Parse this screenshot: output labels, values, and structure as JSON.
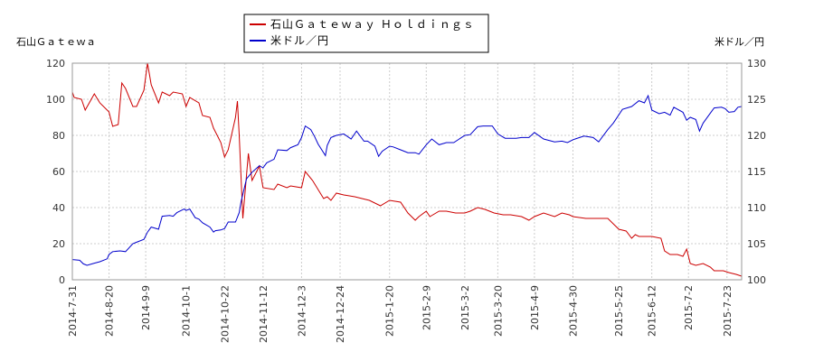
{
  "chart_data": {
    "type": "line",
    "left_axis_label": "石山Ｇａｔｅｗａ",
    "right_axis_label": "米ドル／円",
    "y_left": {
      "min": 0,
      "max": 120,
      "ticks": [
        "0",
        "20",
        "40",
        "60",
        "80",
        "100",
        "120"
      ]
    },
    "y_right": {
      "min": 100,
      "max": 130,
      "ticks": [
        "100",
        "105",
        "110",
        "115",
        "120",
        "125",
        "130"
      ]
    },
    "x_start": "2014-07-31",
    "x_end": "2015-07-31",
    "x_ticks": [
      "2014-7-31",
      "2014-8-20",
      "2014-9-9",
      "2014-10-1",
      "2014-10-22",
      "2014-11-12",
      "2014-12-3",
      "2014-12-24",
      "2015-1-20",
      "2015-2-9",
      "2015-3-2",
      "2015-3-20",
      "2015-4-9",
      "2015-4-30",
      "2015-5-25",
      "2015-6-12",
      "2015-7-2",
      "2015-7-23"
    ],
    "grid": true,
    "legend_position": "top",
    "series": [
      {
        "name": "石山Ｇａｔｅｗａｙ Ｈｏｌｄｉｎｇｓ",
        "axis": "left",
        "color": "#cc0000",
        "points": [
          [
            "2014-07-31",
            104
          ],
          [
            "2014-08-01",
            101
          ],
          [
            "2014-08-05",
            100
          ],
          [
            "2014-08-07",
            94
          ],
          [
            "2014-08-12",
            103
          ],
          [
            "2014-08-15",
            98
          ],
          [
            "2014-08-20",
            93
          ],
          [
            "2014-08-22",
            85
          ],
          [
            "2014-08-25",
            86
          ],
          [
            "2014-08-27",
            109
          ],
          [
            "2014-08-29",
            106
          ],
          [
            "2014-09-02",
            96
          ],
          [
            "2014-09-04",
            96
          ],
          [
            "2014-09-08",
            105
          ],
          [
            "2014-09-10",
            120
          ],
          [
            "2014-09-12",
            108
          ],
          [
            "2014-09-16",
            98
          ],
          [
            "2014-09-18",
            104
          ],
          [
            "2014-09-22",
            102
          ],
          [
            "2014-09-24",
            104
          ],
          [
            "2014-09-29",
            103
          ],
          [
            "2014-10-01",
            96
          ],
          [
            "2014-10-03",
            101
          ],
          [
            "2014-10-08",
            98
          ],
          [
            "2014-10-10",
            91
          ],
          [
            "2014-10-14",
            90
          ],
          [
            "2014-10-16",
            84
          ],
          [
            "2014-10-20",
            76
          ],
          [
            "2014-10-22",
            68
          ],
          [
            "2014-10-24",
            72
          ],
          [
            "2014-10-28",
            90
          ],
          [
            "2014-10-29",
            99
          ],
          [
            "2014-10-30",
            80
          ],
          [
            "2014-11-01",
            34
          ],
          [
            "2014-11-04",
            70
          ],
          [
            "2014-11-06",
            55
          ],
          [
            "2014-11-10",
            63
          ],
          [
            "2014-11-12",
            51
          ],
          [
            "2014-11-18",
            50
          ],
          [
            "2014-11-20",
            53
          ],
          [
            "2014-11-25",
            51
          ],
          [
            "2014-11-27",
            52
          ],
          [
            "2014-12-03",
            51
          ],
          [
            "2014-12-05",
            60
          ],
          [
            "2014-12-09",
            55
          ],
          [
            "2014-12-15",
            45
          ],
          [
            "2014-12-17",
            46
          ],
          [
            "2014-12-19",
            44
          ],
          [
            "2014-12-22",
            48
          ],
          [
            "2014-12-26",
            47
          ],
          [
            "2015-01-01",
            46
          ],
          [
            "2015-01-09",
            44
          ],
          [
            "2015-01-15",
            41
          ],
          [
            "2015-01-20",
            44
          ],
          [
            "2015-01-26",
            43
          ],
          [
            "2015-01-30",
            37
          ],
          [
            "2015-02-03",
            33
          ],
          [
            "2015-02-05",
            35
          ],
          [
            "2015-02-09",
            38
          ],
          [
            "2015-02-11",
            35
          ],
          [
            "2015-02-16",
            38
          ],
          [
            "2015-02-20",
            38
          ],
          [
            "2015-02-25",
            37
          ],
          [
            "2015-03-02",
            37
          ],
          [
            "2015-03-05",
            38
          ],
          [
            "2015-03-09",
            40
          ],
          [
            "2015-03-13",
            39
          ],
          [
            "2015-03-18",
            37
          ],
          [
            "2015-03-23",
            36
          ],
          [
            "2015-03-27",
            36
          ],
          [
            "2015-04-02",
            35
          ],
          [
            "2015-04-06",
            33
          ],
          [
            "2015-04-09",
            35
          ],
          [
            "2015-04-14",
            37
          ],
          [
            "2015-04-20",
            35
          ],
          [
            "2015-04-24",
            37
          ],
          [
            "2015-04-28",
            36
          ],
          [
            "2015-04-30",
            35
          ],
          [
            "2015-05-07",
            34
          ],
          [
            "2015-05-14",
            34
          ],
          [
            "2015-05-19",
            34
          ],
          [
            "2015-05-25",
            28
          ],
          [
            "2015-05-29",
            27
          ],
          [
            "2015-06-01",
            23
          ],
          [
            "2015-06-03",
            25
          ],
          [
            "2015-06-05",
            24
          ],
          [
            "2015-06-12",
            24
          ],
          [
            "2015-06-17",
            23
          ],
          [
            "2015-06-19",
            16
          ],
          [
            "2015-06-22",
            14
          ],
          [
            "2015-06-26",
            14
          ],
          [
            "2015-06-29",
            13
          ],
          [
            "2015-07-01",
            17
          ],
          [
            "2015-07-03",
            9
          ],
          [
            "2015-07-06",
            8
          ],
          [
            "2015-07-10",
            9
          ],
          [
            "2015-07-14",
            7
          ],
          [
            "2015-07-16",
            5
          ],
          [
            "2015-07-21",
            5
          ],
          [
            "2015-07-24",
            4
          ],
          [
            "2015-07-28",
            3
          ],
          [
            "2015-07-31",
            2
          ]
        ]
      },
      {
        "name": "米ドル／円",
        "axis": "right",
        "color": "#0000cc",
        "points": [
          [
            "2014-07-31",
            102.8
          ],
          [
            "2014-08-04",
            102.7
          ],
          [
            "2014-08-06",
            102.2
          ],
          [
            "2014-08-08",
            102.0
          ],
          [
            "2014-08-12",
            102.3
          ],
          [
            "2014-08-15",
            102.5
          ],
          [
            "2014-08-19",
            102.9
          ],
          [
            "2014-08-20",
            103.5
          ],
          [
            "2014-08-22",
            103.9
          ],
          [
            "2014-08-26",
            104.0
          ],
          [
            "2014-08-29",
            103.9
          ],
          [
            "2014-09-02",
            105.0
          ],
          [
            "2014-09-04",
            105.2
          ],
          [
            "2014-09-08",
            105.6
          ],
          [
            "2014-09-10",
            106.6
          ],
          [
            "2014-09-12",
            107.3
          ],
          [
            "2014-09-16",
            107.0
          ],
          [
            "2014-09-18",
            108.8
          ],
          [
            "2014-09-22",
            108.9
          ],
          [
            "2014-09-24",
            108.8
          ],
          [
            "2014-09-26",
            109.3
          ],
          [
            "2014-09-30",
            109.8
          ],
          [
            "2014-10-01",
            109.6
          ],
          [
            "2014-10-03",
            109.8
          ],
          [
            "2014-10-06",
            108.6
          ],
          [
            "2014-10-08",
            108.4
          ],
          [
            "2014-10-10",
            107.9
          ],
          [
            "2014-10-14",
            107.3
          ],
          [
            "2014-10-16",
            106.6
          ],
          [
            "2014-10-17",
            106.8
          ],
          [
            "2014-10-20",
            106.9
          ],
          [
            "2014-10-22",
            107.1
          ],
          [
            "2014-10-24",
            108.0
          ],
          [
            "2014-10-28",
            108.0
          ],
          [
            "2014-10-30",
            109.3
          ],
          [
            "2014-10-31",
            110.8
          ],
          [
            "2014-11-03",
            114.0
          ],
          [
            "2014-11-06",
            114.9
          ],
          [
            "2014-11-10",
            115.8
          ],
          [
            "2014-11-12",
            115.5
          ],
          [
            "2014-11-14",
            116.2
          ],
          [
            "2014-11-18",
            116.7
          ],
          [
            "2014-11-20",
            118.0
          ],
          [
            "2014-11-25",
            117.9
          ],
          [
            "2014-11-27",
            118.3
          ],
          [
            "2014-12-01",
            118.7
          ],
          [
            "2014-12-03",
            119.7
          ],
          [
            "2014-12-05",
            121.3
          ],
          [
            "2014-12-08",
            120.8
          ],
          [
            "2014-12-10",
            119.9
          ],
          [
            "2014-12-12",
            118.8
          ],
          [
            "2014-12-16",
            117.2
          ],
          [
            "2014-12-17",
            118.6
          ],
          [
            "2014-12-19",
            119.7
          ],
          [
            "2014-12-22",
            120.0
          ],
          [
            "2014-12-26",
            120.2
          ],
          [
            "2014-12-30",
            119.5
          ],
          [
            "2015-01-02",
            120.6
          ],
          [
            "2015-01-06",
            119.2
          ],
          [
            "2015-01-08",
            119.2
          ],
          [
            "2015-01-12",
            118.5
          ],
          [
            "2015-01-14",
            117.1
          ],
          [
            "2015-01-16",
            117.8
          ],
          [
            "2015-01-20",
            118.5
          ],
          [
            "2015-01-22",
            118.4
          ],
          [
            "2015-01-26",
            118.0
          ],
          [
            "2015-01-28",
            117.8
          ],
          [
            "2015-01-30",
            117.6
          ],
          [
            "2015-02-03",
            117.6
          ],
          [
            "2015-02-05",
            117.4
          ],
          [
            "2015-02-09",
            118.7
          ],
          [
            "2015-02-12",
            119.5
          ],
          [
            "2015-02-16",
            118.7
          ],
          [
            "2015-02-20",
            119.0
          ],
          [
            "2015-02-24",
            119.0
          ],
          [
            "2015-03-02",
            120.0
          ],
          [
            "2015-03-05",
            120.1
          ],
          [
            "2015-03-09",
            121.2
          ],
          [
            "2015-03-12",
            121.3
          ],
          [
            "2015-03-17",
            121.3
          ],
          [
            "2015-03-20",
            120.2
          ],
          [
            "2015-03-24",
            119.6
          ],
          [
            "2015-03-30",
            119.6
          ],
          [
            "2015-04-02",
            119.7
          ],
          [
            "2015-04-06",
            119.7
          ],
          [
            "2015-04-09",
            120.4
          ],
          [
            "2015-04-14",
            119.5
          ],
          [
            "2015-04-20",
            119.1
          ],
          [
            "2015-04-24",
            119.2
          ],
          [
            "2015-04-27",
            119.0
          ],
          [
            "2015-04-30",
            119.4
          ],
          [
            "2015-05-06",
            119.9
          ],
          [
            "2015-05-11",
            119.7
          ],
          [
            "2015-05-14",
            119.1
          ],
          [
            "2015-05-19",
            120.8
          ],
          [
            "2015-05-22",
            121.7
          ],
          [
            "2015-05-27",
            123.6
          ],
          [
            "2015-06-01",
            124.0
          ],
          [
            "2015-06-05",
            124.8
          ],
          [
            "2015-06-08",
            124.5
          ],
          [
            "2015-06-10",
            125.5
          ],
          [
            "2015-06-12",
            123.5
          ],
          [
            "2015-06-16",
            123.0
          ],
          [
            "2015-06-19",
            123.2
          ],
          [
            "2015-06-22",
            122.8
          ],
          [
            "2015-06-24",
            123.9
          ],
          [
            "2015-06-29",
            123.2
          ],
          [
            "2015-07-01",
            122.1
          ],
          [
            "2015-07-03",
            122.5
          ],
          [
            "2015-07-06",
            122.2
          ],
          [
            "2015-07-08",
            120.6
          ],
          [
            "2015-07-10",
            121.7
          ],
          [
            "2015-07-14",
            123.1
          ],
          [
            "2015-07-16",
            123.8
          ],
          [
            "2015-07-20",
            123.9
          ],
          [
            "2015-07-22",
            123.7
          ],
          [
            "2015-07-24",
            123.2
          ],
          [
            "2015-07-27",
            123.3
          ],
          [
            "2015-07-29",
            123.9
          ],
          [
            "2015-07-31",
            124.0
          ]
        ]
      }
    ]
  }
}
